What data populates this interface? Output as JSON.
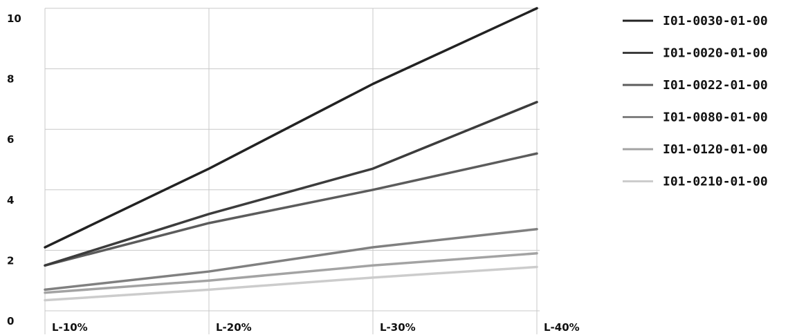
{
  "chart_data": {
    "type": "line",
    "categories": [
      "L-10%",
      "L-20%",
      "L-30%",
      "L-40%"
    ],
    "ylim": [
      0,
      10
    ],
    "yticks": [
      0,
      2,
      4,
      6,
      8,
      10
    ],
    "grid": true,
    "legend_position": "right",
    "series": [
      {
        "name": "I01-0030-01-00",
        "color": "#222222",
        "values": [
          2.1,
          4.7,
          7.5,
          10.0
        ]
      },
      {
        "name": "I01-0020-01-00",
        "color": "#3c3c3c",
        "values": [
          1.5,
          3.2,
          4.7,
          6.9
        ]
      },
      {
        "name": "I01-0022-01-00",
        "color": "#5c5c5c",
        "values": [
          1.5,
          2.9,
          4.0,
          5.2
        ]
      },
      {
        "name": "I01-0080-01-00",
        "color": "#808080",
        "values": [
          0.7,
          1.3,
          2.1,
          2.7
        ]
      },
      {
        "name": "I01-0120-01-00",
        "color": "#a3a3a3",
        "values": [
          0.6,
          1.0,
          1.5,
          1.9
        ]
      },
      {
        "name": "I01-0210-01-00",
        "color": "#cccccc",
        "values": [
          0.35,
          0.7,
          1.1,
          1.45
        ]
      }
    ]
  }
}
